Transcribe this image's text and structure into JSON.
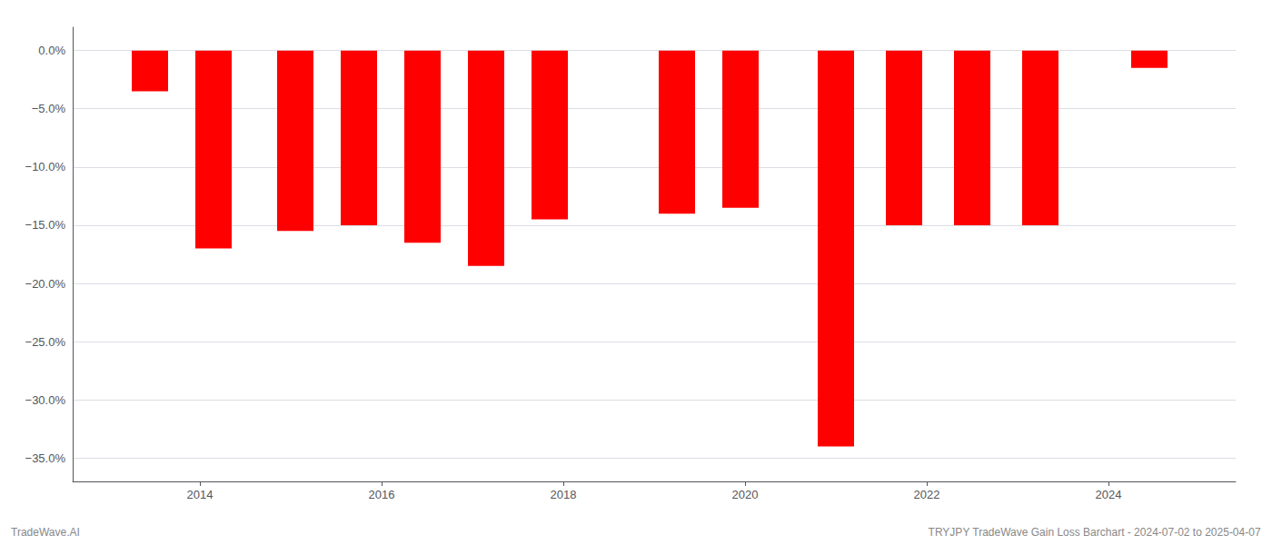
{
  "chart_data": {
    "type": "bar",
    "x": [
      2013.45,
      2014.15,
      2015.05,
      2015.75,
      2016.45,
      2017.15,
      2017.85,
      2019.25,
      2019.95,
      2021.0,
      2021.75,
      2022.5,
      2023.25,
      2024.45
    ],
    "values": [
      -3.5,
      -17.0,
      -15.5,
      -15.0,
      -16.5,
      -18.5,
      -14.5,
      -14.0,
      -13.5,
      -34.0,
      -15.0,
      -15.0,
      -15.0,
      -1.5
    ],
    "color": "#ff0000",
    "xlim": [
      2012.6,
      2025.4
    ],
    "xticks": [
      2014,
      2016,
      2018,
      2020,
      2022,
      2024
    ],
    "ylim": [
      -37,
      2.0
    ],
    "yticks": [
      {
        "value": 0.0,
        "label": "0.0%"
      },
      {
        "value": -5.0,
        "label": "−5.0%"
      },
      {
        "value": -10.0,
        "label": "−10.0%"
      },
      {
        "value": -15.0,
        "label": "−15.0%"
      },
      {
        "value": -20.0,
        "label": "−20.0%"
      },
      {
        "value": -25.0,
        "label": "−25.0%"
      },
      {
        "value": -30.0,
        "label": "−30.0%"
      },
      {
        "value": -35.0,
        "label": "−35.0%"
      }
    ],
    "grid": true,
    "annotations": [
      "TradeWave.AI",
      "TRYJPY TradeWave Gain Loss Barchart - 2024-07-02 to 2025-04-07"
    ]
  }
}
